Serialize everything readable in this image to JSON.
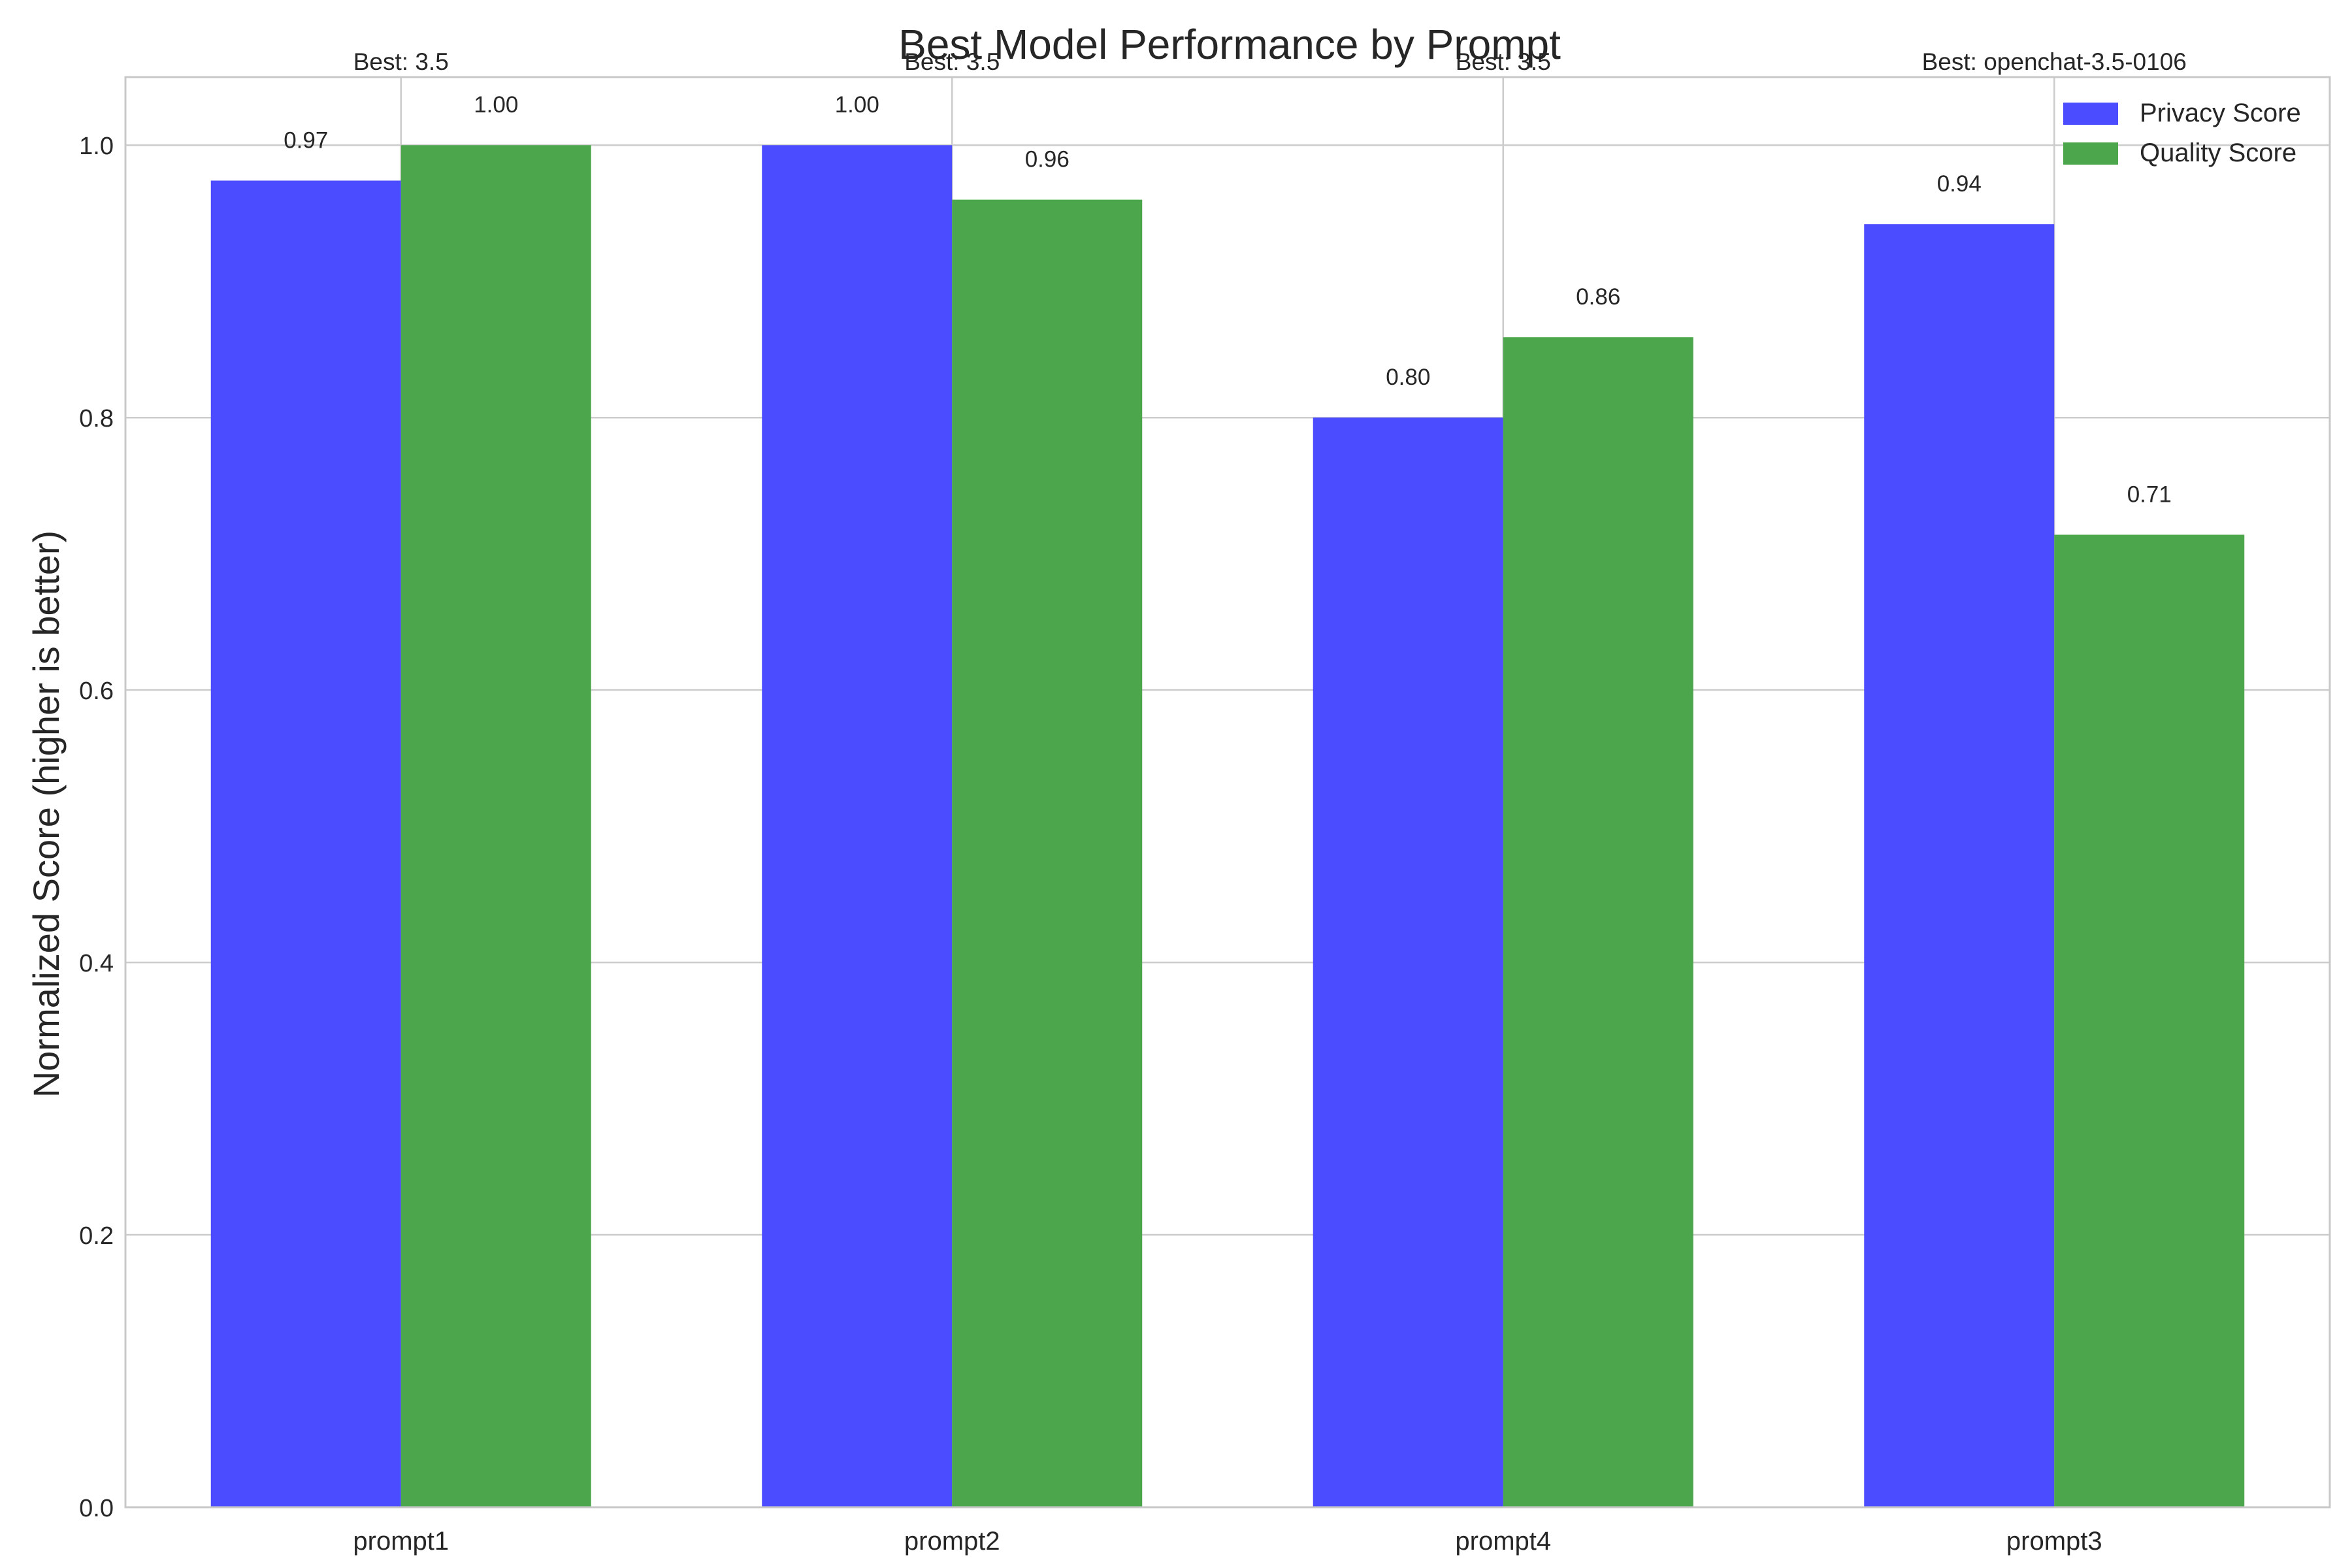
{
  "chart_data": {
    "type": "bar",
    "title": "Best Model Performance by Prompt",
    "xlabel": "",
    "ylabel": "Normalized Score (higher is better)",
    "categories": [
      "prompt1",
      "prompt2",
      "prompt4",
      "prompt3"
    ],
    "series": [
      {
        "name": "Privacy Score",
        "color": "#4b4bff",
        "values": [
          0.974,
          1.0,
          0.8,
          0.942
        ],
        "value_labels": [
          "0.97",
          "1.00",
          "0.80",
          "0.94"
        ]
      },
      {
        "name": "Quality Score",
        "color": "#4ca64c",
        "values": [
          1.0,
          0.96,
          0.859,
          0.714
        ],
        "value_labels": [
          "1.00",
          "0.96",
          "0.86",
          "0.71"
        ]
      }
    ],
    "best_labels": [
      "Best: 3.5",
      "Best: 3.5",
      "Best: 3.5",
      "Best: openchat-3.5-0106"
    ],
    "ylim": [
      0,
      1.05
    ],
    "yticks": [
      0.0,
      0.2,
      0.4,
      0.6,
      0.8,
      1.0
    ],
    "ytick_labels": [
      "0.0",
      "0.2",
      "0.4",
      "0.6",
      "0.8",
      "1.0"
    ],
    "grid": true,
    "legend_position": "top-right"
  }
}
